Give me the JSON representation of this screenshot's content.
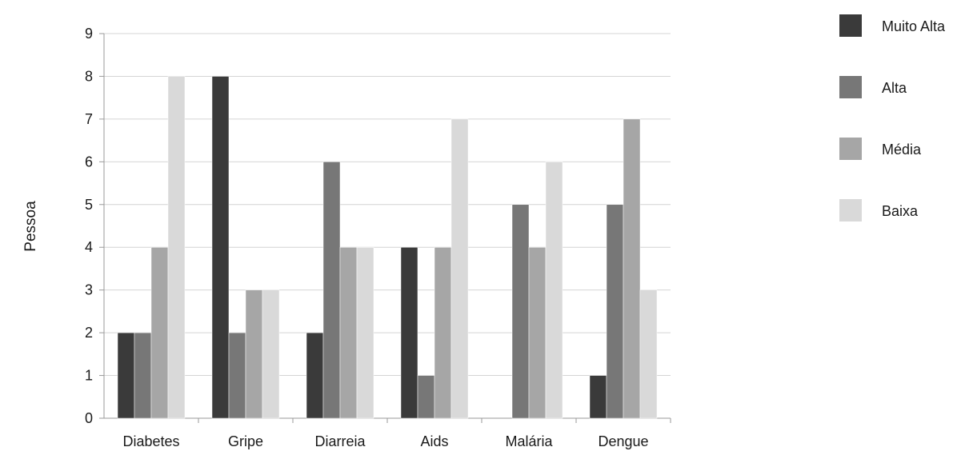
{
  "chart_data": {
    "type": "bar",
    "title": "",
    "xlabel": "",
    "ylabel": "Pessoa",
    "categories": [
      "Diabetes",
      "Gripe",
      "Diarreia",
      "Aids",
      "Malária",
      "Dengue"
    ],
    "series": [
      {
        "name": "Muito Alta",
        "color": "#3a3a3a",
        "values": [
          2,
          8,
          2,
          4,
          0,
          1
        ]
      },
      {
        "name": "Alta",
        "color": "#777777",
        "values": [
          2,
          2,
          6,
          1,
          5,
          5
        ]
      },
      {
        "name": "Média",
        "color": "#a6a6a6",
        "values": [
          4,
          3,
          4,
          4,
          4,
          7
        ]
      },
      {
        "name": "Baixa",
        "color": "#d9d9d9",
        "values": [
          8,
          3,
          4,
          7,
          6,
          3
        ]
      }
    ],
    "yticks": [
      "0",
      "1",
      "2",
      "3",
      "4",
      "5",
      "6",
      "7",
      "8",
      "9"
    ],
    "ylim": [
      0,
      9
    ],
    "grid": true,
    "legend_position": "right"
  }
}
